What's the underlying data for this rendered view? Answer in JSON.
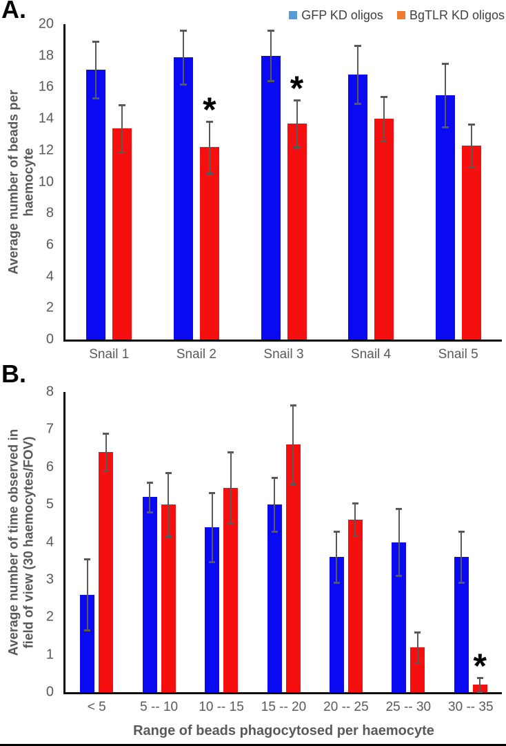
{
  "figure": {
    "background": "#ffffff",
    "bar_colors": {
      "blue": "#0909f2",
      "red": "#f50f0f"
    },
    "error_bar_color": "#595959",
    "axis_color": "#0d0d0d",
    "tick_label_color": "#595959",
    "axis_title_color": "#595959",
    "legend_text_color": "#3f3f3f",
    "significance_marker_color": "#000000"
  },
  "legend": {
    "items": [
      {
        "label": "GFP KD oligos",
        "swatch_color": "#5b9bd5"
      },
      {
        "label": "BgTLR KD oligos",
        "swatch_color": "#ed7d31"
      }
    ]
  },
  "chart_data": [
    {
      "type": "bar",
      "panel": "A.",
      "title": "",
      "ylabel": "Average number of beads per haemocyte",
      "ylabel_lines": [
        "Average number of beads per",
        "haemocyte"
      ],
      "xlabel": "",
      "ylim": [
        0,
        20
      ],
      "ytick_step": 2,
      "grid": false,
      "legend_position": "top-right",
      "categories": [
        "Snail 1",
        "Snail 2",
        "Snail 3",
        "Snail 4",
        "Snail 5"
      ],
      "series": [
        {
          "name": "GFP KD oligos",
          "color_key": "blue",
          "values": [
            17.1,
            17.9,
            18.0,
            16.8,
            15.5
          ],
          "errors": [
            1.8,
            1.7,
            1.6,
            1.85,
            2.0
          ]
        },
        {
          "name": "BgTLR KD oligos",
          "color_key": "red",
          "values": [
            13.4,
            12.2,
            13.7,
            14.0,
            12.3
          ],
          "errors": [
            1.5,
            1.65,
            1.5,
            1.4,
            1.35
          ]
        }
      ],
      "significance": [
        {
          "category": "Snail 2",
          "category_index": 1,
          "series": "BgTLR KD oligos",
          "marker": "*"
        },
        {
          "category": "Snail 3",
          "category_index": 2,
          "series": "BgTLR KD oligos",
          "marker": "*"
        }
      ]
    },
    {
      "type": "bar",
      "panel": "B.",
      "title": "",
      "ylabel": "Average number of time observed in field of view (30 haemocytes/FOV)",
      "ylabel_lines": [
        "Average number of time observed in",
        "field of view (30 haemocytes/FOV)"
      ],
      "xlabel": "Range of beads phagocytosed per haemocyte",
      "ylim": [
        0,
        8
      ],
      "ytick_step": 1,
      "grid": false,
      "legend_position": "none",
      "categories": [
        "< 5",
        "5 -- 10",
        "10 -- 15",
        "15 -- 20",
        "20 -- 25",
        "25 -- 30",
        "30 -- 35"
      ],
      "series": [
        {
          "name": "GFP KD oligos",
          "color_key": "blue",
          "values": [
            2.6,
            5.2,
            4.4,
            5.0,
            3.6,
            4.0,
            3.6
          ],
          "errors": [
            0.95,
            0.4,
            0.92,
            0.72,
            0.68,
            0.9,
            0.68
          ]
        },
        {
          "name": "BgTLR KD oligos",
          "color_key": "red",
          "values": [
            6.4,
            5.0,
            5.45,
            6.6,
            4.6,
            1.2,
            0.2
          ],
          "errors": [
            0.5,
            0.85,
            0.95,
            1.05,
            0.43,
            0.4,
            0.18
          ]
        }
      ],
      "significance": [
        {
          "category": "30 -- 35",
          "category_index": 6,
          "series": "BgTLR KD oligos",
          "marker": "*"
        }
      ]
    }
  ]
}
